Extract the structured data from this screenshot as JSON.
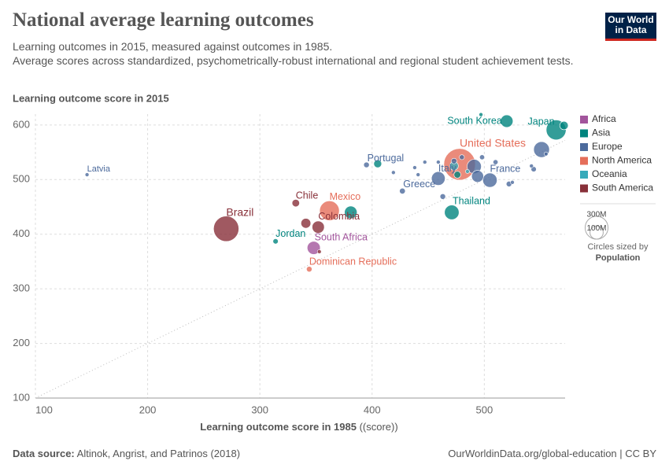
{
  "chart_data": {
    "type": "scatter",
    "title": "National average learning outcomes",
    "subtitle": [
      "Learning outcomes in 2015, measured against outcomes in 1985.",
      "Average scores across standardized, psychometrically-robust international and regional student achievement tests."
    ],
    "y_label": "Learning outcome score in 2015",
    "x_label": "Learning outcome score in 1985",
    "x_unit": "((score))",
    "xlim": [
      100,
      572
    ],
    "ylim": [
      100,
      620
    ],
    "xticks": [
      100,
      200,
      300,
      400,
      500
    ],
    "yticks": [
      100,
      200,
      300,
      400,
      500,
      600
    ],
    "grid": true,
    "series": [
      {
        "name": "Africa",
        "color": "#a2559c",
        "x": [
          348
        ],
        "y": [
          375
        ],
        "sizes": [
          55
        ],
        "labels": [
          "South Africa"
        ]
      },
      {
        "name": "Asia",
        "color": "#00847e",
        "x": [
          520,
          564,
          471,
          314,
          497,
          571,
          381,
          405,
          476
        ],
        "y": [
          607,
          591,
          440,
          387,
          619,
          599,
          440,
          529,
          509
        ],
        "sizes": [
          50,
          127,
          68,
          9,
          5,
          23,
          51,
          20,
          15
        ],
        "labels": [
          "South Korea",
          "Japan",
          "Thailand",
          "Jordan",
          null,
          null,
          null,
          null,
          null
        ]
      },
      {
        "name": "Europe",
        "color": "#4c6a9c",
        "x": [
          146,
          395,
          427,
          459,
          505,
          551,
          491,
          494,
          463,
          419,
          438,
          441,
          447,
          459,
          473,
          480,
          498,
          510,
          522,
          525,
          542,
          544,
          555
        ],
        "y": [
          509,
          527,
          479,
          502,
          499,
          555,
          524,
          506,
          469,
          513,
          522,
          509,
          532,
          532,
          534,
          541,
          541,
          532,
          492,
          495,
          525,
          519,
          547
        ],
        "sizes": [
          2,
          10,
          11,
          60,
          66,
          80,
          65,
          46,
          10,
          3,
          5,
          5,
          3,
          5,
          10,
          8,
          8,
          8,
          10,
          4,
          5,
          9,
          5
        ],
        "labels": [
          "Latvia",
          "Portugal",
          "Greece",
          "Italy",
          "France",
          null,
          null,
          null,
          null,
          null,
          null,
          null,
          null,
          null,
          null,
          null,
          null,
          null,
          null,
          null,
          null,
          null,
          null
        ]
      },
      {
        "name": "North America",
        "color": "#e56e5a",
        "x": [
          478,
          362,
          344
        ],
        "y": [
          528,
          443,
          336
        ],
        "sizes": [
          320,
          125,
          10
        ],
        "labels": [
          "United States",
          "Mexico",
          "Dominican Republic"
        ]
      },
      {
        "name": "Oceania",
        "color": "#38aaba",
        "x": [
          473,
          485
        ],
        "y": [
          525,
          515
        ],
        "sizes": [
          24,
          5
        ],
        "labels": [
          null,
          null
        ]
      },
      {
        "name": "South America",
        "color": "#883039",
        "x": [
          270,
          332,
          352,
          341,
          353
        ],
        "y": [
          410,
          457,
          413,
          420,
          368
        ],
        "sizes": [
          206,
          18,
          48,
          31,
          3
        ],
        "labels": [
          "Brazil",
          "Chile",
          "Colombia",
          null,
          null
        ]
      }
    ],
    "size_legend": {
      "values": [
        300,
        100
      ],
      "value_labels": [
        "300M",
        "100M"
      ],
      "title": "Circles sized by",
      "variable": "Population"
    },
    "logo": [
      "Our World",
      "in Data"
    ],
    "source_prefix": "Data source:",
    "source": "Altinok, Angrist, and Patrinos (2018)",
    "url": "OurWorldinData.org/global-education | CC BY"
  }
}
